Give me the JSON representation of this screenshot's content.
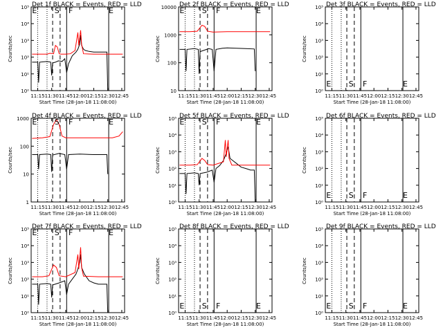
{
  "figure": {
    "xlabel": "Start Time (28-Jan-18 11:08:00)",
    "ylabel": "Counts/sec",
    "x_ticks": [
      "11:15",
      "11:30",
      "11:45",
      "12:00",
      "12:15",
      "12:30",
      "12:45"
    ]
  },
  "markers": {
    "lines": [
      {
        "time": "11:15",
        "style": "dotted"
      },
      {
        "time": "11:25",
        "style": "dotted"
      },
      {
        "time": "11:31",
        "style": "dashed"
      },
      {
        "time": "11:39",
        "style": "dashed"
      },
      {
        "time": "11:46",
        "style": "solid"
      },
      {
        "time": "12:31",
        "style": "solid"
      }
    ],
    "labels": [
      {
        "text": "E",
        "time": "11:09"
      },
      {
        "text": "S",
        "time": "11:33"
      },
      {
        "text": "F",
        "time": "11:48"
      },
      {
        "text": "E",
        "time": "12:31"
      }
    ]
  },
  "colors": {
    "events": "#000000",
    "lld": "#ff0000",
    "axis": "#000000"
  },
  "chart_data": [
    {
      "type": "line",
      "title": "Det 1f BLACK = Events, RED = LLD",
      "ylim": [
        1,
        100000
      ],
      "yscale": "log",
      "ytick_labels": [
        "10⁰",
        "10¹",
        "10²",
        "10³",
        "10⁴",
        "10⁵"
      ],
      "series": [
        {
          "name": "Events",
          "color": "#000000",
          "points": [
            [
              "11:09",
              50
            ],
            [
              "11:15",
              50
            ],
            [
              "11:16",
              3
            ],
            [
              "11:17",
              50
            ],
            [
              "11:20",
              52
            ],
            [
              "11:25",
              55
            ],
            [
              "11:29",
              50
            ],
            [
              "11:30",
              8
            ],
            [
              "11:31",
              45
            ],
            [
              "11:34",
              50
            ],
            [
              "11:37",
              60
            ],
            [
              "11:39",
              58
            ],
            [
              "11:41",
              55
            ],
            [
              "11:44",
              80
            ],
            [
              "11:46",
              12
            ],
            [
              "11:48",
              40
            ],
            [
              "11:52",
              120
            ],
            [
              "11:56",
              200
            ],
            [
              "11:58",
              300
            ],
            [
              "12:00",
              600
            ],
            [
              "12:01",
              2000
            ],
            [
              "12:02",
              500
            ],
            [
              "12:04",
              300
            ],
            [
              "12:06",
              250
            ],
            [
              "12:10",
              220
            ],
            [
              "12:15",
              200
            ],
            [
              "12:20",
              200
            ],
            [
              "12:25",
              200
            ],
            [
              "12:29",
              200
            ],
            [
              "12:30",
              1
            ]
          ]
        },
        {
          "name": "LLD",
          "color": "#ff0000",
          "points": [
            [
              "11:09",
              150
            ],
            [
              "11:15",
              150
            ],
            [
              "11:20",
              150
            ],
            [
              "11:25",
              150
            ],
            [
              "11:28",
              170
            ],
            [
              "11:32",
              160
            ],
            [
              "11:34",
              500
            ],
            [
              "11:36",
              400
            ],
            [
              "11:38",
              160
            ],
            [
              "11:40",
              150
            ],
            [
              "11:45",
              150
            ],
            [
              "11:50",
              160
            ],
            [
              "11:55",
              250
            ],
            [
              "11:58",
              3000
            ],
            [
              "11:59",
              500
            ],
            [
              "12:01",
              4000
            ],
            [
              "12:02",
              600
            ],
            [
              "12:04",
              160
            ],
            [
              "12:15",
              150
            ],
            [
              "12:30",
              150
            ],
            [
              "12:40",
              150
            ],
            [
              "12:46",
              150
            ]
          ]
        }
      ]
    },
    {
      "type": "line",
      "title": "Det 2f BLACK = Events, RED = LLD",
      "ylim": [
        10,
        10000
      ],
      "yscale": "log",
      "ytick_labels": [
        "10",
        "100",
        "1000",
        "10000"
      ],
      "series": [
        {
          "name": "Events",
          "color": "#000000",
          "points": [
            [
              "11:09",
              300
            ],
            [
              "11:15",
              300
            ],
            [
              "11:16",
              50
            ],
            [
              "11:17",
              300
            ],
            [
              "11:25",
              320
            ],
            [
              "11:29",
              300
            ],
            [
              "11:30",
              40
            ],
            [
              "11:31",
              250
            ],
            [
              "11:38",
              300
            ],
            [
              "11:40",
              320
            ],
            [
              "11:44",
              300
            ],
            [
              "11:46",
              50
            ],
            [
              "11:48",
              300
            ],
            [
              "11:55",
              330
            ],
            [
              "12:00",
              340
            ],
            [
              "12:10",
              330
            ],
            [
              "12:20",
              320
            ],
            [
              "12:29",
              310
            ],
            [
              "12:30",
              50
            ]
          ]
        },
        {
          "name": "LLD",
          "color": "#ff0000",
          "points": [
            [
              "11:09",
              1300
            ],
            [
              "11:20",
              1300
            ],
            [
              "11:28",
              1350
            ],
            [
              "11:33",
              2200
            ],
            [
              "11:36",
              2000
            ],
            [
              "11:39",
              1350
            ],
            [
              "11:45",
              1250
            ],
            [
              "12:00",
              1300
            ],
            [
              "12:20",
              1300
            ],
            [
              "12:46",
              1300
            ]
          ]
        }
      ]
    },
    {
      "type": "line",
      "title": "Det 3f BLACK = Events, RED = LLD",
      "ylim": [
        1,
        100000
      ],
      "yscale": "log",
      "ytick_labels": [
        "10⁰",
        "10¹",
        "10²",
        "10³",
        "10⁴",
        "10⁵"
      ],
      "series": []
    },
    {
      "type": "line",
      "title": "Det 4f BLACK = Events, RED = LLD",
      "ylim": [
        1,
        1000
      ],
      "yscale": "log",
      "ytick_labels": [
        "1",
        "10",
        "100",
        "1000"
      ],
      "series": [
        {
          "name": "Events",
          "color": "#000000",
          "points": [
            [
              "11:09",
              50
            ],
            [
              "11:15",
              50
            ],
            [
              "11:16",
              15
            ],
            [
              "11:17",
              50
            ],
            [
              "11:25",
              52
            ],
            [
              "11:29",
              50
            ],
            [
              "11:30",
              12
            ],
            [
              "11:31",
              48
            ],
            [
              "11:38",
              55
            ],
            [
              "11:44",
              50
            ],
            [
              "11:46",
              15
            ],
            [
              "11:48",
              50
            ],
            [
              "12:00",
              52
            ],
            [
              "12:15",
              50
            ],
            [
              "12:29",
              50
            ],
            [
              "12:30",
              10
            ]
          ]
        },
        {
          "name": "LLD",
          "color": "#ff0000",
          "points": [
            [
              "11:09",
              190
            ],
            [
              "11:20",
              200
            ],
            [
              "11:28",
              220
            ],
            [
              "11:32",
              600
            ],
            [
              "11:35",
              900
            ],
            [
              "11:38",
              600
            ],
            [
              "11:41",
              230
            ],
            [
              "11:45",
              200
            ],
            [
              "12:00",
              200
            ],
            [
              "12:20",
              200
            ],
            [
              "12:35",
              200
            ],
            [
              "12:42",
              230
            ],
            [
              "12:46",
              330
            ]
          ]
        }
      ]
    },
    {
      "type": "line",
      "title": "Det 5f BLACK = Events, RED = LLD",
      "ylim": [
        1,
        100000
      ],
      "yscale": "log",
      "ytick_labels": [
        "10⁰",
        "10¹",
        "10²",
        "10³",
        "10⁴",
        "10⁵"
      ],
      "series": [
        {
          "name": "Events",
          "color": "#000000",
          "points": [
            [
              "11:09",
              50
            ],
            [
              "11:15",
              50
            ],
            [
              "11:16",
              3
            ],
            [
              "11:17",
              50
            ],
            [
              "11:25",
              55
            ],
            [
              "11:29",
              50
            ],
            [
              "11:30",
              10
            ],
            [
              "11:31",
              50
            ],
            [
              "11:38",
              60
            ],
            [
              "11:44",
              80
            ],
            [
              "11:46",
              15
            ],
            [
              "11:48",
              100
            ],
            [
              "11:52",
              150
            ],
            [
              "11:56",
              300
            ],
            [
              "11:59",
              800
            ],
            [
              "12:01",
              2000
            ],
            [
              "12:03",
              400
            ],
            [
              "12:06",
              300
            ],
            [
              "12:10",
              200
            ],
            [
              "12:15",
              120
            ],
            [
              "12:20",
              100
            ],
            [
              "12:25",
              80
            ],
            [
              "12:29",
              80
            ],
            [
              "12:30",
              1
            ]
          ]
        },
        {
          "name": "LLD",
          "color": "#ff0000",
          "points": [
            [
              "11:09",
              160
            ],
            [
              "11:20",
              160
            ],
            [
              "11:28",
              170
            ],
            [
              "11:33",
              400
            ],
            [
              "11:36",
              300
            ],
            [
              "11:39",
              170
            ],
            [
              "11:45",
              160
            ],
            [
              "11:56",
              250
            ],
            [
              "11:58",
              5000
            ],
            [
              "11:59",
              500
            ],
            [
              "12:01",
              5000
            ],
            [
              "12:02",
              400
            ],
            [
              "12:05",
              160
            ],
            [
              "12:20",
              160
            ],
            [
              "12:46",
              160
            ]
          ]
        }
      ]
    },
    {
      "type": "line",
      "title": "Det 6f BLACK = Events, RED = LLD",
      "ylim": [
        1,
        100000
      ],
      "yscale": "log",
      "ytick_labels": [
        "10⁰",
        "10¹",
        "10²",
        "10³",
        "10⁴",
        "10⁵"
      ],
      "series": []
    },
    {
      "type": "line",
      "title": "Det 7f BLACK = Events, RED = LLD",
      "ylim": [
        1,
        100000
      ],
      "yscale": "log",
      "ytick_labels": [
        "10⁰",
        "10¹",
        "10²",
        "10³",
        "10⁴",
        "10⁵"
      ],
      "series": [
        {
          "name": "Events",
          "color": "#000000",
          "points": [
            [
              "11:09",
              50
            ],
            [
              "11:15",
              50
            ],
            [
              "11:16",
              3
            ],
            [
              "11:17",
              50
            ],
            [
              "11:25",
              55
            ],
            [
              "11:29",
              50
            ],
            [
              "11:30",
              8
            ],
            [
              "11:31",
              45
            ],
            [
              "11:38",
              60
            ],
            [
              "11:44",
              80
            ],
            [
              "11:46",
              12
            ],
            [
              "11:48",
              50
            ],
            [
              "11:52",
              100
            ],
            [
              "11:56",
              200
            ],
            [
              "11:58",
              400
            ],
            [
              "12:00",
              1000
            ],
            [
              "12:01",
              3000
            ],
            [
              "12:02",
              500
            ],
            [
              "12:05",
              200
            ],
            [
              "12:10",
              80
            ],
            [
              "12:15",
              60
            ],
            [
              "12:20",
              50
            ],
            [
              "12:29",
              50
            ],
            [
              "12:30",
              1
            ]
          ]
        },
        {
          "name": "LLD",
          "color": "#ff0000",
          "points": [
            [
              "11:09",
              140
            ],
            [
              "11:20",
              140
            ],
            [
              "11:27",
              160
            ],
            [
              "11:32",
              700
            ],
            [
              "11:35",
              500
            ],
            [
              "11:38",
              160
            ],
            [
              "11:45",
              140
            ],
            [
              "11:55",
              250
            ],
            [
              "11:58",
              3000
            ],
            [
              "11:59",
              400
            ],
            [
              "12:01",
              8000
            ],
            [
              "12:02",
              500
            ],
            [
              "12:04",
              150
            ],
            [
              "12:20",
              140
            ],
            [
              "12:46",
              140
            ]
          ]
        }
      ]
    },
    {
      "type": "line",
      "title": "Det 8f BLACK = Events, RED = LLD",
      "ylim": [
        1,
        100000
      ],
      "yscale": "log",
      "ytick_labels": [
        "10⁰",
        "10¹",
        "10²",
        "10³",
        "10⁴",
        "10⁵"
      ],
      "series": []
    },
    {
      "type": "line",
      "title": "Det 9f BLACK = Events, RED = LLD",
      "ylim": [
        1,
        100000
      ],
      "yscale": "log",
      "ytick_labels": [
        "10⁰",
        "10¹",
        "10²",
        "10³",
        "10⁴",
        "10⁵"
      ],
      "series": []
    }
  ]
}
